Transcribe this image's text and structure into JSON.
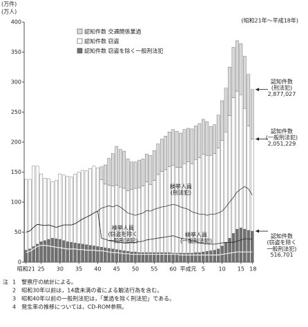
{
  "chart_data": {
    "type": "stacked-bar-line",
    "y_unit_top": "(万件)",
    "y_unit_bottom": "(万人)",
    "period": "(昭和21年～平成18年)",
    "categories": [
      "昭和21",
      null,
      null,
      null,
      "25",
      null,
      null,
      null,
      null,
      "30",
      null,
      null,
      null,
      null,
      "35",
      null,
      null,
      null,
      null,
      "40",
      null,
      null,
      null,
      null,
      "45",
      null,
      null,
      null,
      null,
      "50",
      null,
      null,
      null,
      null,
      "55",
      null,
      null,
      null,
      null,
      "60",
      null,
      null,
      null,
      "平成元",
      null,
      null,
      null,
      "5",
      null,
      null,
      null,
      null,
      "10",
      null,
      null,
      null,
      null,
      "15",
      null,
      null,
      "18"
    ],
    "ylim": [
      0,
      400
    ],
    "yticks": [
      0,
      50,
      100,
      150,
      200,
      250,
      300,
      350,
      400
    ],
    "series": [
      {
        "name": "認知件数 窃盗を除く一般刑法犯",
        "color": "#707070",
        "values": [
          20,
          22,
          26,
          30,
          34,
          36,
          38,
          40,
          39,
          38,
          36,
          34,
          33,
          32,
          31,
          30,
          29,
          28,
          27,
          26,
          25,
          24,
          23,
          22,
          21,
          20,
          19,
          18,
          17,
          17,
          16,
          16,
          16,
          16,
          16,
          16,
          16,
          16,
          16,
          15,
          15,
          15,
          15,
          15,
          15,
          16,
          16,
          17,
          18,
          19,
          20,
          22,
          27,
          33,
          40,
          48,
          55,
          57,
          55,
          53,
          51.7
        ]
      },
      {
        "name": "認知件数 窃盗",
        "color": "#ffffff",
        "values": [
          118,
          116,
          134,
          130,
          113,
          104,
          101,
          94,
          97,
          109,
          109,
          109,
          109,
          115,
          119,
          123,
          123,
          128,
          133,
          131,
          112,
          106,
          105,
          105,
          107,
          105,
          104,
          101,
          104,
          106,
          108,
          111,
          118,
          113,
          120,
          130,
          135,
          138,
          143,
          146,
          143,
          143,
          149,
          152,
          149,
          155,
          158,
          163,
          160,
          159,
          161,
          168,
          176,
          184,
          204,
          226,
          230,
          222,
          201,
          174,
          153.4
        ]
      },
      {
        "name": "認知件数 交通関係業過",
        "color": "#d9d9d9",
        "values": [
          0,
          0,
          0,
          0,
          0,
          0,
          0,
          0,
          0,
          0,
          0,
          0,
          0,
          0,
          0,
          0,
          0,
          0,
          0,
          0,
          22,
          32,
          45,
          54,
          65,
          63,
          62,
          53,
          46,
          44,
          46,
          45,
          46,
          49,
          50,
          51,
          54,
          56,
          58,
          60,
          60,
          57,
          57,
          56,
          58,
          56,
          57,
          58,
          56,
          48,
          48,
          55,
          66,
          73,
          81,
          84,
          84,
          85,
          87,
          86,
          82.6
        ]
      }
    ],
    "lines": [
      {
        "name": "検挙人員\n(刑法犯)",
        "color": "#333333",
        "values": [
          50,
          52,
          58,
          63,
          62,
          61,
          62,
          60,
          58,
          60,
          62,
          62,
          62,
          64,
          68,
          72,
          75,
          78,
          82,
          85,
          90,
          92,
          94,
          92,
          95,
          92,
          87,
          82,
          80,
          78,
          80,
          82,
          86,
          85,
          88,
          90,
          92,
          93,
          95,
          96,
          95,
          92,
          90,
          88,
          84,
          82,
          80,
          80,
          78,
          80,
          80,
          82,
          85,
          92,
          100,
          108,
          117,
          122,
          126,
          122,
          112
        ]
      },
      {
        "name": "検挙人員\n(一般刑法犯)",
        "color": "#222222",
        "values": [
          50,
          52,
          58,
          63,
          62,
          61,
          62,
          60,
          58,
          60,
          62,
          62,
          62,
          64,
          68,
          72,
          75,
          78,
          82,
          85,
          40,
          38,
          36,
          35,
          34,
          33,
          32,
          32,
          33,
          33,
          34,
          35,
          37,
          38,
          39,
          40,
          41,
          42,
          43,
          44,
          42,
          40,
          39,
          38,
          36,
          34,
          32,
          31,
          30,
          30,
          30,
          31,
          32,
          33,
          33,
          33,
          35,
          37,
          39,
          39,
          38
        ]
      },
      {
        "name": "検挙人員\n(窃盗を除く\n一般刑法犯)",
        "color": "#f2f2f2",
        "values": [
          16,
          18,
          22,
          26,
          28,
          28,
          27,
          26,
          25,
          24,
          23,
          22,
          22,
          22,
          21,
          21,
          20,
          20,
          20,
          19,
          19,
          18,
          17,
          16,
          16,
          15,
          14,
          14,
          13,
          13,
          13,
          13,
          13,
          13,
          13,
          13,
          13,
          13,
          13,
          13,
          13,
          12,
          12,
          12,
          12,
          12,
          12,
          12,
          12,
          12,
          12,
          12,
          13,
          14,
          15,
          16,
          17,
          17,
          17,
          17,
          17
        ]
      }
    ],
    "end_labels": [
      {
        "text": "認知件数\n(刑法犯)",
        "value": 287.7027,
        "label": "2,877,027"
      },
      {
        "text": "認知件数\n(一般刑法犯)",
        "value": 205.1229,
        "label": "2,051,229"
      },
      {
        "text": "認知件数\n(窃盗を除く\n一般刑法犯)",
        "value": 51.6701,
        "label": "516,701"
      }
    ],
    "notes_head": "注",
    "notes": [
      "1　警察庁の統計による。",
      "2　昭和30年以前は，14歳未満の者による触法行為を含む。",
      "3　昭和40年以前の一般刑法犯は，「業過を除く刑法犯」である。",
      "4　発生率の推移については，CD-ROM参照。"
    ]
  }
}
